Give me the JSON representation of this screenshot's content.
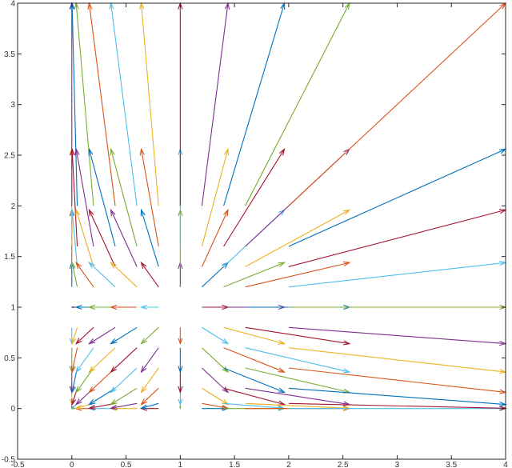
{
  "chart_data": {
    "type": "quiver",
    "title": "",
    "xlabel": "",
    "ylabel": "",
    "xlim": [
      -0.5,
      4
    ],
    "ylim": [
      -0.5,
      4
    ],
    "grid": false,
    "xticks": [
      "-0.5",
      "0",
      "0.5",
      "1",
      "1.5",
      "2",
      "2.5",
      "3",
      "3.5",
      "4"
    ],
    "yticks": [
      "-0.5",
      "0",
      "0.5",
      "1",
      "1.5",
      "2",
      "2.5",
      "3",
      "3.5",
      "4"
    ],
    "xtick_values": [
      -0.5,
      0,
      0.5,
      1,
      1.5,
      2,
      2.5,
      3,
      3.5,
      4
    ],
    "ytick_values": [
      -0.5,
      0,
      0.5,
      1,
      1.5,
      2,
      2.5,
      3,
      3.5,
      4
    ],
    "colors": [
      "#0072BD",
      "#D95319",
      "#EDB120",
      "#7E2F8E",
      "#77AC30",
      "#4DBEEE",
      "#A2142F"
    ],
    "grid_values": [
      0,
      0.05,
      0.2,
      0.4,
      0.6,
      0.8,
      1,
      1.2,
      1.4,
      1.6,
      2
    ],
    "field": "v(x, y) = (x^2 - x, y^2 - y), drawn from (x, y)"
  }
}
